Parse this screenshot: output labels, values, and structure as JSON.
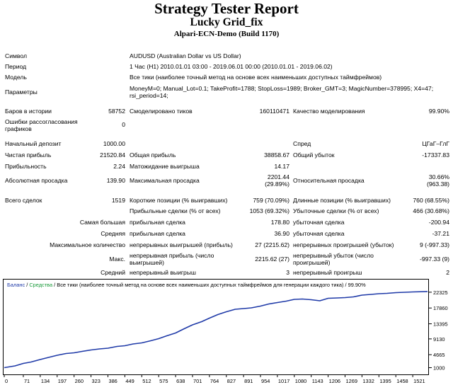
{
  "header": {
    "title": "Strategy Tester Report",
    "expert": "Lucky Grid_fix",
    "server": "Alpari-ECN-Demo (Build 1170)"
  },
  "info": {
    "symbol_label": "Символ",
    "symbol_value": "AUDUSD (Australian Dollar vs US Dollar)",
    "period_label": "Период",
    "period_value": "1 Час (H1) 2010.01.01 03:00 - 2019.06.01 00:00 (2010.01.01 - 2019.06.02)",
    "model_label": "Модель",
    "model_value": "Все тики (наиболее точный метод на основе всех наименьших доступных таймфреймов)",
    "params_label": "Параметры",
    "params_value": "MoneyM=0; Manual_Lot=0.1; TakeProfit=1788; StopLoss=1989; Broker_GMT=3; MagicNumber=378995; X4=47; rsi_period=14;"
  },
  "stats": {
    "bars_label": "Баров в истории",
    "bars_value": "58752",
    "ticks_label": "Смоделировано тиков",
    "ticks_value": "160110471",
    "quality_label": "Качество моделирования",
    "quality_value": "99.90%",
    "errors_label": "Ошибки рассогласования графиков",
    "errors_value": "0",
    "deposit_label": "Начальный депозит",
    "deposit_value": "1000.00",
    "spread_label": "Спред",
    "spread_value": "ЦГаГ–ГлГ",
    "net_label": "Чистая прибыль",
    "net_value": "21520.84",
    "gross_profit_label": "Общая прибыль",
    "gross_profit_value": "38858.67",
    "gross_loss_label": "Общий убыток",
    "gross_loss_value": "-17337.83",
    "pf_label": "Прибыльность",
    "pf_value": "2.24",
    "exp_label": "Матожидание выигрыша",
    "exp_value": "14.17",
    "abs_dd_label": "Абсолютная просадка",
    "abs_dd_value": "139.90",
    "max_dd_label": "Максимальная просадка",
    "max_dd_value": "2201.44",
    "max_dd_pct": "(29.89%)",
    "rel_dd_label": "Относительная просадка",
    "rel_dd_value": "30.66%",
    "rel_dd_abs": "(963.38)",
    "total_label": "Всего сделок",
    "total_value": "1519",
    "short_label": "Короткие позиции (% выигравших)",
    "short_value": "759 (70.09%)",
    "long_label": "Длинные позиции (% выигравших)",
    "long_value": "760 (68.55%)",
    "profit_trades_label": "Прибыльные сделки (% от всех)",
    "profit_trades_value": "1053 (69.32%)",
    "loss_trades_label": "Убыточные сделки (% от всех)",
    "loss_trades_value": "466 (30.68%)",
    "largest_label": "Самая большая",
    "largest_profit_label": "прибыльная сделка",
    "largest_profit_value": "178.80",
    "largest_loss_label": "убыточная сделка",
    "largest_loss_value": "-200.94",
    "avg_label": "Средняя",
    "avg_profit_label": "прибыльная сделка",
    "avg_profit_value": "36.90",
    "avg_loss_label": "убыточная сделка",
    "avg_loss_value": "-37.21",
    "max_count_label": "Максимальное количество",
    "max_cons_wins_label": "непрерывных выигрышей (прибыль)",
    "max_cons_wins_value": "27 (2215.62)",
    "max_cons_losses_label": "непрерывных проигрышей (убыток)",
    "max_cons_losses_value": "9 (-997.33)",
    "max_label": "Макс.",
    "max_cons_profit_label": "непрерывная прибыль (число выигрышей)",
    "max_cons_profit_value": "2215.62 (27)",
    "max_cons_loss_label": "непрерывный убыток (число проигрышей)",
    "max_cons_loss_value": "-997.33 (9)",
    "avg2_label": "Средний",
    "avg_cons_wins_label": "непрерывный выигрыш",
    "avg_cons_wins_value": "3",
    "avg_cons_losses_label": "непрерывный проигрыш",
    "avg_cons_losses_value": "2"
  },
  "chart_legend": {
    "balance": "Баланс",
    "equity": "Средства",
    "description": "Все тики (наиболее точный метод на основе всех наименьших доступных таймфреймов для генерации каждого тика)",
    "quality": "99.90%"
  },
  "chart_data": {
    "type": "line",
    "xlim": [
      0,
      1576
    ],
    "ylim": [
      -700,
      25700
    ],
    "x_ticks": [
      0,
      71,
      134,
      197,
      260,
      323,
      386,
      449,
      512,
      575,
      638,
      701,
      764,
      827,
      891,
      954,
      1017,
      1080,
      1143,
      1206,
      1269,
      1332,
      1395,
      1458,
      1521
    ],
    "y_ticks": [
      1000,
      4665,
      9130,
      13395,
      17860,
      22325
    ],
    "grid": false,
    "legend": "top-left",
    "colors": {
      "balance": "#1f3aa8",
      "equity": "#1a9a3a"
    },
    "series": [
      {
        "name": "Баланс",
        "x": [
          0,
          40,
          71,
          100,
          134,
          165,
          197,
          230,
          260,
          290,
          323,
          355,
          386,
          420,
          449,
          480,
          512,
          545,
          575,
          605,
          638,
          670,
          701,
          735,
          764,
          795,
          827,
          860,
          891,
          920,
          954,
          985,
          1017,
          1050,
          1080,
          1110,
          1143,
          1175,
          1206,
          1240,
          1269,
          1300,
          1332,
          1365,
          1395,
          1425,
          1458,
          1490,
          1521,
          1576
        ],
        "y": [
          1000,
          1500,
          2200,
          2600,
          3300,
          3900,
          4500,
          5000,
          5200,
          5600,
          6000,
          6300,
          6500,
          7000,
          7200,
          7700,
          8000,
          8600,
          9200,
          10000,
          10800,
          12000,
          13100,
          14000,
          15000,
          16000,
          16800,
          17500,
          17700,
          17900,
          18400,
          19000,
          19400,
          19800,
          20300,
          20400,
          20200,
          19900,
          20600,
          20700,
          20800,
          21000,
          21500,
          21700,
          21900,
          22000,
          22200,
          22300,
          22400,
          22520
        ]
      }
    ]
  }
}
